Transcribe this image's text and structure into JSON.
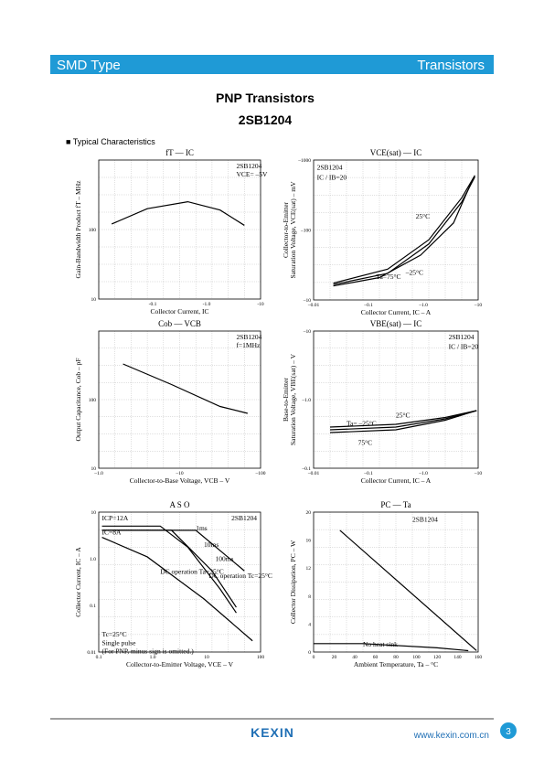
{
  "header": {
    "left": "SMD Type",
    "right": "Transistors"
  },
  "title": "PNP  Transistors",
  "part": "2SB1204",
  "section": "■  Typical  Characteristics",
  "graphs": [
    {
      "title": "fT  —  IC",
      "x_label": "Collector Current, IC",
      "y_label": [
        "Gain-Bandwidth Product fT – MHz"
      ],
      "x_ticks": [
        "-0.1",
        "-1.0",
        "-10"
      ],
      "y_ticks": [
        "10",
        "100"
      ],
      "notes": [
        "2SB1204",
        "VCE= –5V"
      ]
    },
    {
      "title": "VCE(sat)  —  IC",
      "x_label": "Collector Current, IC – A",
      "y_label": [
        "Collector-to-Emitter",
        "Saturation Voltage, VCE(sat) – mV"
      ],
      "x_ticks": [
        "–0.01",
        "–0.1",
        "–1.0",
        "–10"
      ],
      "y_ticks": [
        "–10",
        "–100",
        "–1000"
      ],
      "notes": [
        "2SB1204",
        "IC / IB=20",
        "Ta=75°C",
        "25°C",
        "–25°C"
      ]
    },
    {
      "title": "Cob  —  VCB",
      "x_label": "Collector-to-Base Voltage, VCB – V",
      "y_label": [
        "Output Capacitance, Cob – pF"
      ],
      "x_ticks": [
        "–1.0",
        "–10",
        "–100"
      ],
      "y_ticks": [
        "10",
        "100"
      ],
      "notes": [
        "2SB1204",
        "f=1MHz"
      ]
    },
    {
      "title": "VBE(sat)  —  IC",
      "x_label": "Collector Current, IC – A",
      "y_label": [
        "Base-to-Emitter",
        "Saturation Voltage, VBE(sat) – V"
      ],
      "x_ticks": [
        "–0.01",
        "–0.1",
        "–1.0",
        "–10"
      ],
      "y_ticks": [
        "–0.1",
        "–1.0",
        "–10"
      ],
      "notes": [
        "2SB1204",
        "IC / IB=20",
        "Ta= –25°C",
        "25°C",
        "75°C"
      ]
    },
    {
      "title": "A S O",
      "x_label": "Collector-to-Emitter Voltage, VCE – V",
      "y_label": [
        "Collector Current, IC – A"
      ],
      "x_ticks": [
        "0.1",
        "1.0",
        "10",
        "100"
      ],
      "y_ticks": [
        "0.01",
        "0.1",
        "1.0",
        "10"
      ],
      "notes": [
        "ICP=12A",
        "IC=8A",
        "2SB1204",
        "Tc=25°C",
        "Single pulse",
        "(For PNP, minus sign is omitted.)",
        "1ms",
        "10ms",
        "100ms",
        "DC operation Ta=25°C",
        "DC operation Tc=25°C"
      ]
    },
    {
      "title": "PC  —  Ta",
      "x_label": "Ambient Temperature, Ta – °C",
      "y_label": [
        "Collector Dissipation, PC – W"
      ],
      "x_ticks": [
        "0",
        "20",
        "40",
        "60",
        "80",
        "100",
        "120",
        "140",
        "160"
      ],
      "y_ticks": [
        "0",
        "4",
        "8",
        "12",
        "16",
        "20"
      ],
      "notes": [
        "2SB1204",
        "No heat sink"
      ]
    }
  ],
  "footer": {
    "logo": "KEXIN",
    "url": "www.kexin.com.cn",
    "page": "3"
  }
}
